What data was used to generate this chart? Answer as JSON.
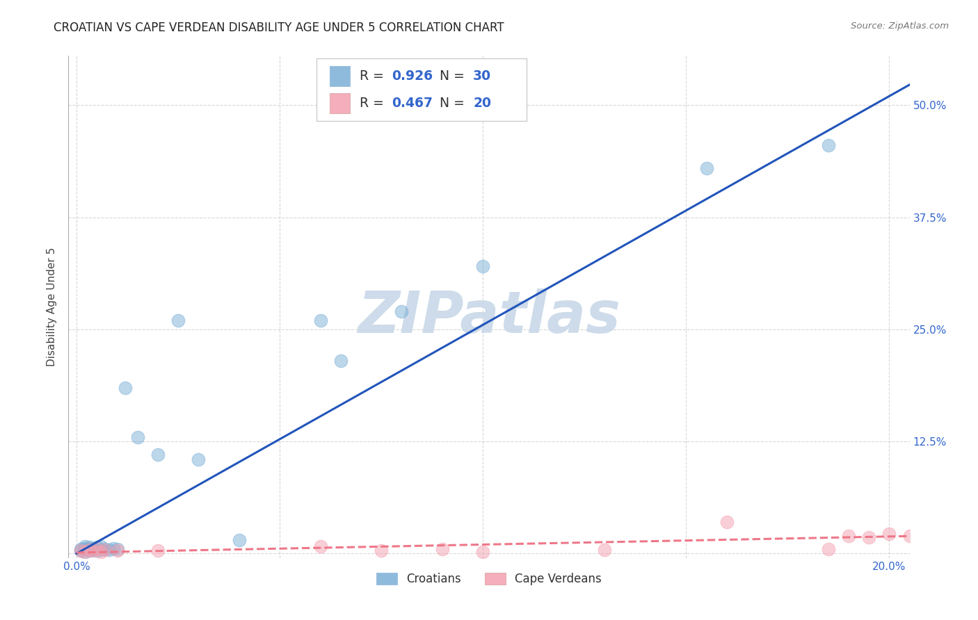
{
  "title": "CROATIAN VS CAPE VERDEAN DISABILITY AGE UNDER 5 CORRELATION CHART",
  "source": "Source: ZipAtlas.com",
  "ylabel": "Disability Age Under 5",
  "xlabel": "",
  "background_color": "#ffffff",
  "plot_bg_color": "#ffffff",
  "grid_color": "#cccccc",
  "title_fontsize": 12,
  "axis_label_fontsize": 11,
  "croatian_R": 0.926,
  "croatian_N": 30,
  "cape_verdean_R": 0.467,
  "cape_verdean_N": 20,
  "croatian_color": "#7aaed6",
  "cape_verdean_color": "#f4a0b0",
  "croatian_line_color": "#2255bb",
  "cape_verdean_line_color": "#ee7788",
  "xlim": [
    -0.002,
    0.205
  ],
  "ylim": [
    -0.005,
    0.555
  ],
  "xticks": [
    0.0,
    0.05,
    0.1,
    0.15,
    0.2
  ],
  "xtick_labels": [
    "0.0%",
    "",
    "",
    "",
    "20.0%"
  ],
  "yticks": [
    0.0,
    0.125,
    0.25,
    0.375,
    0.5
  ],
  "ytick_labels": [
    "",
    "12.5%",
    "25.0%",
    "37.5%",
    "50.0%"
  ],
  "croatian_x": [
    0.001,
    0.001,
    0.002,
    0.002,
    0.002,
    0.003,
    0.003,
    0.003,
    0.004,
    0.004,
    0.005,
    0.005,
    0.006,
    0.006,
    0.007,
    0.008,
    0.009,
    0.01,
    0.012,
    0.015,
    0.02,
    0.025,
    0.03,
    0.04,
    0.06,
    0.065,
    0.08,
    0.1,
    0.155,
    0.185
  ],
  "croatian_y": [
    0.003,
    0.005,
    0.002,
    0.006,
    0.008,
    0.003,
    0.005,
    0.007,
    0.004,
    0.006,
    0.003,
    0.007,
    0.004,
    0.008,
    0.005,
    0.004,
    0.006,
    0.005,
    0.185,
    0.13,
    0.11,
    0.26,
    0.105,
    0.015,
    0.26,
    0.215,
    0.27,
    0.32,
    0.43,
    0.455
  ],
  "cape_verdean_x": [
    0.001,
    0.002,
    0.003,
    0.004,
    0.005,
    0.006,
    0.007,
    0.01,
    0.02,
    0.06,
    0.075,
    0.09,
    0.1,
    0.13,
    0.16,
    0.185,
    0.19,
    0.195,
    0.2,
    0.205
  ],
  "cape_verdean_y": [
    0.003,
    0.002,
    0.004,
    0.003,
    0.005,
    0.002,
    0.004,
    0.003,
    0.003,
    0.008,
    0.003,
    0.005,
    0.002,
    0.004,
    0.035,
    0.005,
    0.02,
    0.018,
    0.022,
    0.02
  ],
  "watermark": "ZIPatlas",
  "watermark_color": "#c8d8e8",
  "line_start_x": 0.0,
  "line_end_x": 0.205,
  "croatian_slope": 2.55,
  "croatian_intercept": 0.0,
  "cape_verdean_slope": 0.09,
  "cape_verdean_intercept": 0.001
}
